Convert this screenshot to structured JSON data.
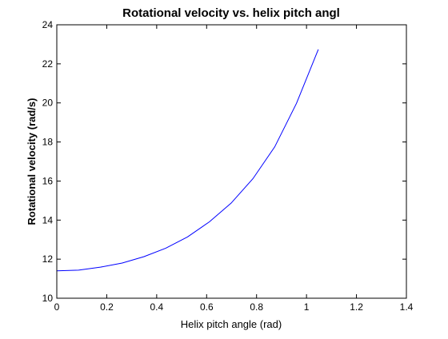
{
  "chart_data": {
    "type": "line",
    "title": "Rotational velocity vs. helix pitch angl",
    "xlabel": "Helix pitch angle (rad)",
    "ylabel": "Rotational velocity (rad/s)",
    "xlim": [
      0,
      1.4
    ],
    "ylim": [
      10,
      24
    ],
    "xticks": [
      0,
      0.2,
      0.4,
      0.6,
      0.8,
      1,
      1.2,
      1.4
    ],
    "xtick_labels": [
      "0",
      "0.2",
      "0.4",
      "0.6",
      "0.8",
      "1",
      "1.2",
      "1.4"
    ],
    "yticks": [
      10,
      12,
      14,
      16,
      18,
      20,
      22,
      24
    ],
    "ytick_labels": [
      "10",
      "12",
      "14",
      "16",
      "18",
      "20",
      "22",
      "24"
    ],
    "grid": false,
    "series": [
      {
        "color": "#0000ff",
        "x": [
          0,
          0.0873,
          0.1745,
          0.2618,
          0.3491,
          0.4363,
          0.5236,
          0.6109,
          0.6981,
          0.7854,
          0.8727,
          0.9599,
          1.0472
        ],
        "y": [
          11.4,
          11.44,
          11.59,
          11.8,
          12.13,
          12.56,
          13.14,
          13.91,
          14.87,
          16.12,
          17.75,
          19.98,
          22.74
        ]
      }
    ]
  }
}
